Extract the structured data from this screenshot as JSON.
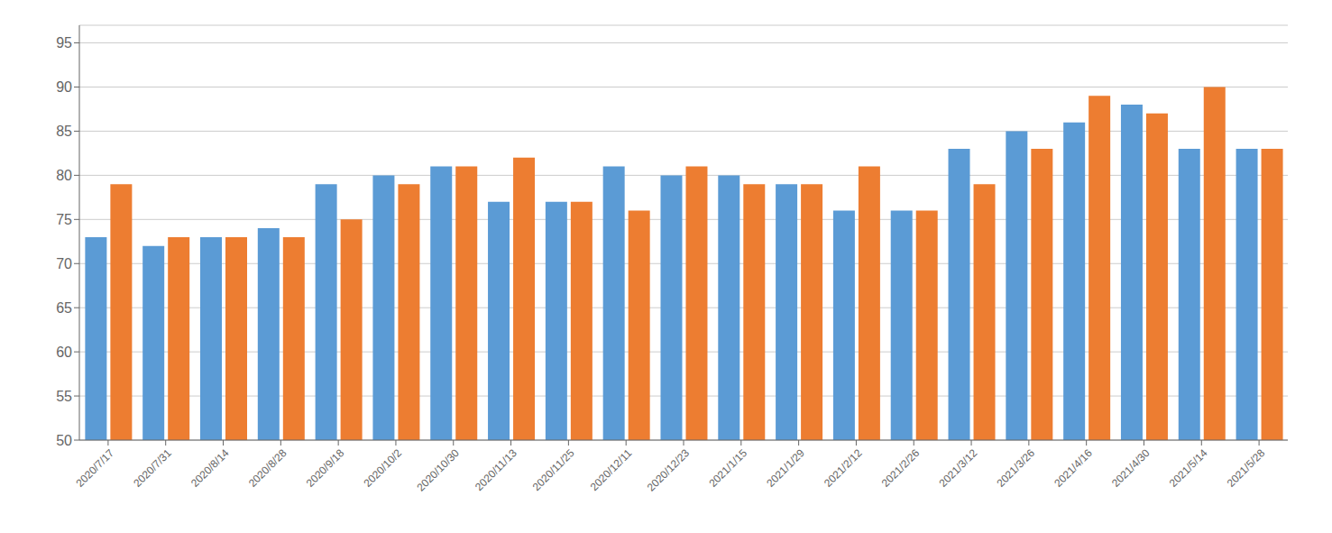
{
  "chart_data": {
    "type": "bar",
    "categories": [
      "2020/7/17",
      "2020/7/31",
      "2020/8/14",
      "2020/8/28",
      "2020/9/18",
      "2020/10/2",
      "2020/10/30",
      "2020/11/13",
      "2020/11/25",
      "2020/12/11",
      "2020/12/23",
      "2021/1/15",
      "2021/1/29",
      "2021/2/12",
      "2021/2/26",
      "2021/3/12",
      "2021/3/26",
      "2021/4/16",
      "2021/4/30",
      "2021/5/14",
      "2021/5/28"
    ],
    "series": [
      {
        "color": "#5B9BD5",
        "values": [
          73,
          72,
          73,
          74,
          79,
          80,
          81,
          77,
          77,
          81,
          80,
          80,
          79,
          76,
          76,
          83,
          85,
          86,
          88,
          83,
          83
        ]
      },
      {
        "color": "#ED7D31",
        "values": [
          79,
          73,
          73,
          73,
          75,
          79,
          81,
          82,
          77,
          76,
          81,
          79,
          79,
          81,
          76,
          79,
          83,
          89,
          87,
          90,
          83
        ]
      }
    ],
    "ylim": [
      50,
      97
    ],
    "yticks": [
      50,
      55,
      60,
      65,
      70,
      75,
      80,
      85,
      90,
      95
    ],
    "grid": true
  }
}
